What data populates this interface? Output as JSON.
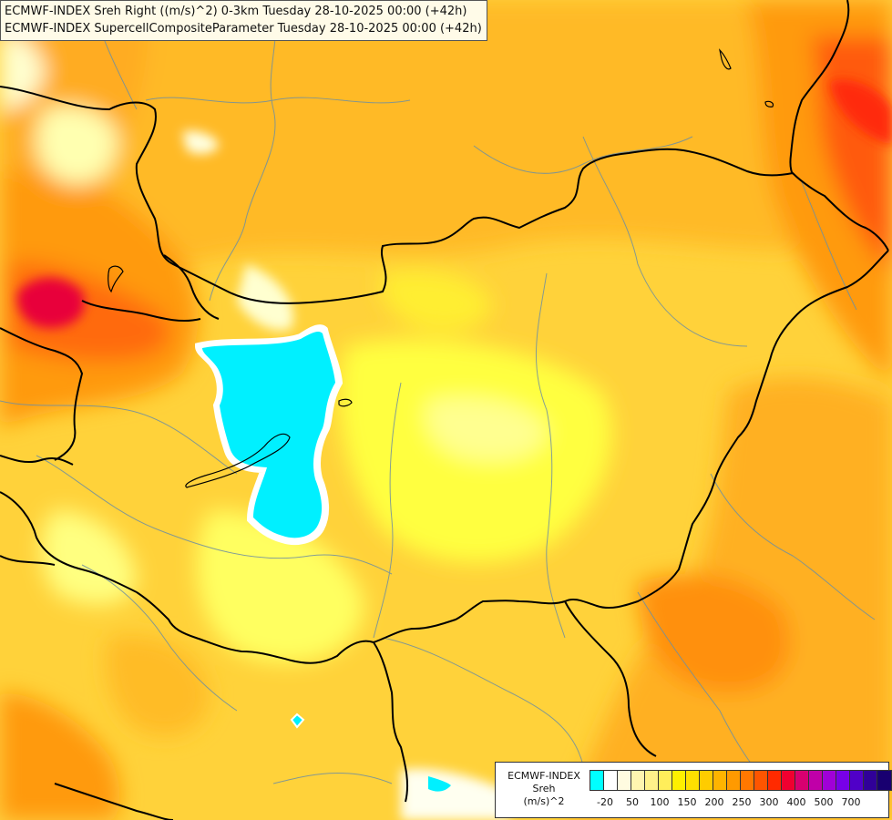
{
  "title": {
    "line1": "ECMWF-INDEX Sreh Right ((m/s)^2) 0-3km Tuesday 28-10-2025 00:00 (+42h)",
    "line2": "ECMWF-INDEX SupercellCompositeParameter Tuesday 28-10-2025 00:00 (+42h)"
  },
  "legend": {
    "line1": "ECMWF-INDEX",
    "line2": "Sreh",
    "line3": "(m/s)^2",
    "colors": [
      "#00ffff",
      "#ffffff",
      "#fffbe0",
      "#fff5b0",
      "#fff28a",
      "#ffee5a",
      "#fff000",
      "#ffe000",
      "#ffcc00",
      "#ffb400",
      "#ff9a00",
      "#ff7800",
      "#ff5500",
      "#ff2a00",
      "#f00030",
      "#d80070",
      "#c000a8",
      "#a000d8",
      "#7800e8",
      "#5000c8",
      "#300098",
      "#180070"
    ],
    "ticks": [
      "-20",
      "50",
      "100",
      "150",
      "200",
      "250",
      "300",
      "400",
      "500",
      "700"
    ]
  }
}
